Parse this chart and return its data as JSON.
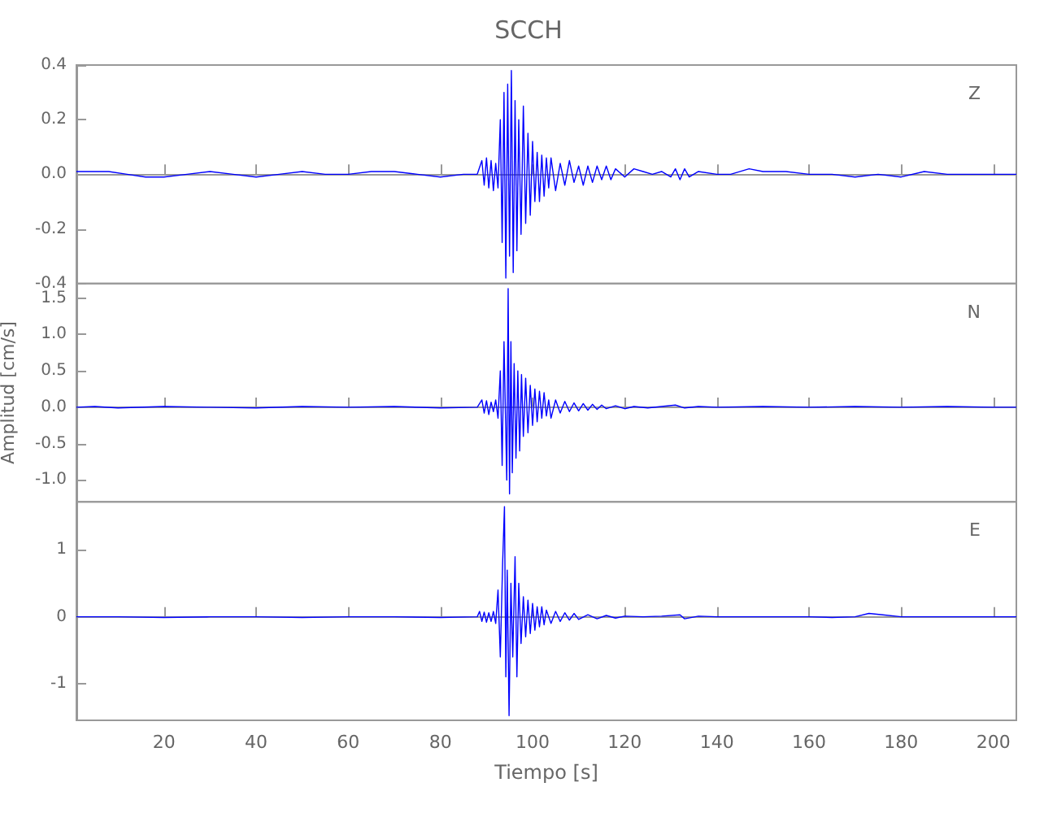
{
  "chart_data": [
    {
      "type": "line",
      "title": "SCCH",
      "annotations": [
        "Z"
      ],
      "xlim": [
        1,
        205
      ],
      "xticks": [
        20,
        40,
        60,
        80,
        100,
        120,
        140,
        160,
        180,
        200
      ],
      "ylim": [
        -0.4,
        0.4
      ],
      "yticks": [
        -0.4,
        -0.2,
        {
          "value": 0,
          "label": "0.0"
        },
        0.2,
        0.4
      ],
      "tick_labels": "y",
      "series": [
        {
          "color": "#0000ff",
          "x": [
            1,
            4,
            8,
            12,
            16,
            20,
            25,
            30,
            35,
            40,
            45,
            50,
            55,
            60,
            65,
            70,
            75,
            80,
            85,
            88,
            89,
            89.5,
            90,
            90.5,
            91,
            91.5,
            92,
            92.5,
            93,
            93.4,
            93.8,
            94.2,
            94.6,
            95,
            95.4,
            95.8,
            96.2,
            96.6,
            97,
            97.5,
            98,
            98.5,
            99,
            99.5,
            100,
            100.5,
            101,
            101.5,
            102,
            102.5,
            103,
            103.5,
            104,
            105,
            106,
            107,
            108,
            109,
            110,
            111,
            112,
            113,
            114,
            115,
            116,
            117,
            118,
            120,
            122,
            124,
            126,
            128,
            130,
            131,
            132,
            133,
            134,
            136,
            140,
            143,
            147,
            150,
            155,
            160,
            165,
            170,
            175,
            180,
            185,
            190,
            195,
            200,
            205
          ],
          "values": [
            0.01,
            0.01,
            0.01,
            0,
            -0.01,
            -0.01,
            0,
            0.01,
            0,
            -0.01,
            0,
            0.01,
            0,
            0,
            0.01,
            0.01,
            0,
            -0.01,
            0,
            0,
            0.05,
            -0.04,
            0.06,
            -0.05,
            0.05,
            -0.06,
            0.04,
            -0.05,
            0.2,
            -0.25,
            0.3,
            -0.38,
            0.33,
            -0.3,
            0.38,
            -0.36,
            0.27,
            -0.28,
            0.2,
            -0.22,
            0.25,
            -0.18,
            0.15,
            -0.15,
            0.12,
            -0.1,
            0.08,
            -0.1,
            0.07,
            -0.08,
            0.06,
            -0.05,
            0.06,
            -0.06,
            0.04,
            -0.04,
            0.05,
            -0.03,
            0.03,
            -0.04,
            0.03,
            -0.03,
            0.03,
            -0.02,
            0.03,
            -0.02,
            0.02,
            -0.01,
            0.02,
            0.01,
            0,
            0.01,
            -0.01,
            0.02,
            -0.02,
            0.02,
            -0.01,
            0.01,
            0,
            0,
            0.02,
            0.01,
            0.01,
            0,
            0,
            -0.01,
            0,
            -0.01,
            0.01,
            0,
            0,
            0,
            0
          ]
        }
      ]
    },
    {
      "type": "line",
      "annotations": [
        "N"
      ],
      "ylabel": "Amplitud [cm/s]",
      "xlim": [
        1,
        205
      ],
      "xticks": [
        20,
        40,
        60,
        80,
        100,
        120,
        140,
        160,
        180,
        200
      ],
      "ylim": [
        -1.3,
        1.7
      ],
      "yticks": [
        {
          "value": -1,
          "label": "-1.0"
        },
        -0.5,
        {
          "value": 0,
          "label": "0.0"
        },
        0.5,
        {
          "value": 1,
          "label": "1.0"
        },
        1.5
      ],
      "tick_labels": "y",
      "series": [
        {
          "color": "#0000ff",
          "x": [
            1,
            5,
            10,
            20,
            30,
            40,
            50,
            60,
            70,
            80,
            88,
            89,
            89.5,
            90,
            90.5,
            91,
            91.5,
            92,
            92.5,
            93,
            93.4,
            93.8,
            94.4,
            94.7,
            95,
            95.3,
            95.6,
            96,
            96.4,
            96.8,
            97.2,
            97.6,
            98,
            98.5,
            99,
            99.5,
            100,
            100.5,
            101,
            101.5,
            102,
            102.5,
            103,
            103.5,
            104,
            105,
            106,
            107,
            108,
            109,
            110,
            111,
            112,
            113,
            114,
            115,
            116,
            118,
            120,
            122,
            125,
            128,
            131,
            133,
            136,
            140,
            150,
            160,
            170,
            180,
            190,
            200,
            205
          ],
          "values": [
            0,
            0.01,
            -0.01,
            0.01,
            0,
            -0.01,
            0.01,
            0,
            0.01,
            -0.01,
            0,
            0.1,
            -0.08,
            0.09,
            -0.1,
            0.07,
            -0.06,
            0.1,
            -0.15,
            0.5,
            -0.8,
            0.9,
            -1.0,
            1.63,
            -1.19,
            0.9,
            -0.9,
            0.6,
            -0.7,
            0.5,
            -0.6,
            0.45,
            -0.4,
            0.4,
            -0.35,
            0.3,
            -0.25,
            0.25,
            -0.2,
            0.22,
            -0.15,
            0.2,
            -0.12,
            0.1,
            -0.15,
            0.1,
            -0.08,
            0.08,
            -0.06,
            0.06,
            -0.05,
            0.05,
            -0.04,
            0.04,
            -0.03,
            0.03,
            -0.02,
            0.02,
            -0.02,
            0.01,
            -0.01,
            0.01,
            0.03,
            -0.01,
            0.01,
            0,
            0.01,
            0,
            0.01,
            0,
            0.01,
            0,
            0
          ]
        }
      ]
    },
    {
      "type": "line",
      "annotations": [
        "E"
      ],
      "xlabel": "Tiempo [s]",
      "xlim": [
        1,
        205
      ],
      "xticks": [
        20,
        40,
        60,
        80,
        100,
        120,
        140,
        160,
        180,
        200
      ],
      "ylim": [
        -1.55,
        1.72
      ],
      "yticks": [
        -1,
        0,
        1
      ],
      "series": [
        {
          "color": "#0000ff",
          "x": [
            1,
            10,
            20,
            30,
            40,
            50,
            60,
            70,
            80,
            88,
            88.5,
            89,
            89.5,
            90,
            90.5,
            91,
            91.5,
            92,
            92.5,
            93,
            93.5,
            93.9,
            94.2,
            94.5,
            94.9,
            95.3,
            95.7,
            96.2,
            96.6,
            97,
            97.5,
            98,
            98.5,
            99,
            99.5,
            100,
            100.5,
            101,
            101.5,
            102,
            102.5,
            103,
            104,
            105,
            106,
            107,
            108,
            109,
            110,
            112,
            114,
            116,
            118,
            120,
            124,
            128,
            132,
            133,
            136,
            140,
            150,
            160,
            165,
            170,
            173,
            176,
            180,
            190,
            200,
            205
          ],
          "values": [
            0,
            0,
            -0.01,
            0,
            0,
            -0.01,
            0,
            0,
            -0.01,
            0,
            0.08,
            -0.07,
            0.07,
            -0.08,
            0.06,
            -0.07,
            0.08,
            -0.1,
            0.4,
            -0.6,
            0.8,
            1.65,
            -0.9,
            0.7,
            -1.48,
            0.5,
            -0.6,
            0.9,
            -0.9,
            0.5,
            -0.4,
            0.3,
            -0.3,
            0.25,
            -0.25,
            0.2,
            -0.2,
            0.15,
            -0.15,
            0.15,
            -0.12,
            0.1,
            -0.1,
            0.08,
            -0.07,
            0.06,
            -0.05,
            0.05,
            -0.04,
            0.03,
            -0.03,
            0.02,
            -0.02,
            0.01,
            0,
            0.01,
            0.03,
            -0.03,
            0.01,
            0,
            0,
            0,
            -0.01,
            0,
            0.05,
            0.03,
            0,
            0,
            0,
            0
          ]
        }
      ]
    }
  ]
}
